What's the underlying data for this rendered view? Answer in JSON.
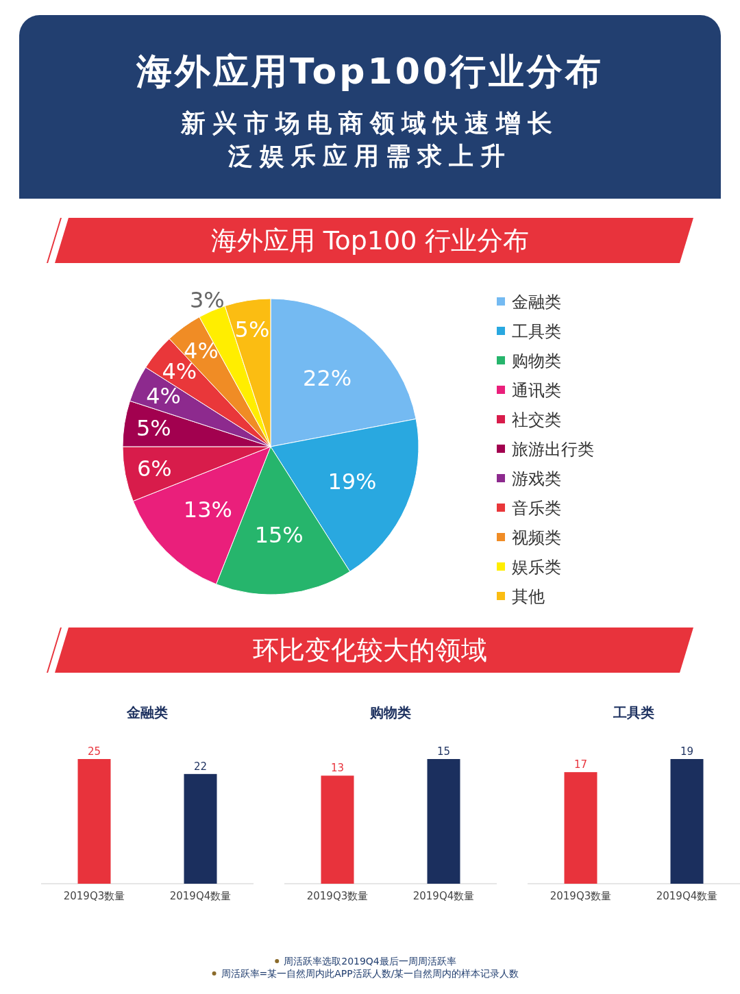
{
  "chart_data": [
    {
      "type": "other",
      "title": "海外应用Top100行业分布",
      "subtitle": "新兴市场电商领域快速增长",
      "annotations": [
        "泛娱乐应用需求上升"
      ]
    },
    {
      "type": "pie",
      "title": "海外应用 Top100 行业分布",
      "categories": [
        "金融类",
        "工具类",
        "购物类",
        "通讯类",
        "社交类",
        "旅游出行类",
        "游戏类",
        "音乐类",
        "视频类",
        "娱乐类",
        "其他"
      ],
      "values": [
        22,
        19,
        15,
        13,
        6,
        5,
        4,
        4,
        4,
        3,
        5
      ],
      "value_labels": [
        "22%",
        "19%",
        "15%",
        "13%",
        "6%",
        "5%",
        "4%",
        "4%",
        "4%",
        "3%",
        "5%"
      ],
      "colors": [
        "#74baf2",
        "#29a8e0",
        "#26b56c",
        "#ea1f7b",
        "#d81c4b",
        "#a2014f",
        "#8d2a8e",
        "#e9373a",
        "#f08c25",
        "#ffee00",
        "#fbbd12"
      ],
      "legend": "right"
    },
    {
      "type": "other",
      "title": "环比变化较大的领域"
    },
    {
      "type": "bar",
      "title": "金融类",
      "categories": [
        "2019Q3数量",
        "2019Q4数量"
      ],
      "values": [
        25,
        22
      ],
      "colors": [
        "#e8333c",
        "#1b2f5e"
      ],
      "data_labels": true
    },
    {
      "type": "bar",
      "title": "购物类",
      "categories": [
        "2019Q3数量",
        "2019Q4数量"
      ],
      "values": [
        13,
        15
      ],
      "colors": [
        "#e8333c",
        "#1b2f5e"
      ],
      "data_labels": true
    },
    {
      "type": "bar",
      "title": "工具类",
      "categories": [
        "2019Q3数量",
        "2019Q4数量"
      ],
      "values": [
        17,
        19
      ],
      "colors": [
        "#e8333c",
        "#1b2f5e"
      ],
      "data_labels": true
    },
    {
      "type": "other",
      "annotations": [
        "周活跃率选取2019Q4最后一周周活跃率",
        "周活跃率=某一自然周内此APP活跃人数/某一自然周内的样本记录人数"
      ]
    }
  ]
}
